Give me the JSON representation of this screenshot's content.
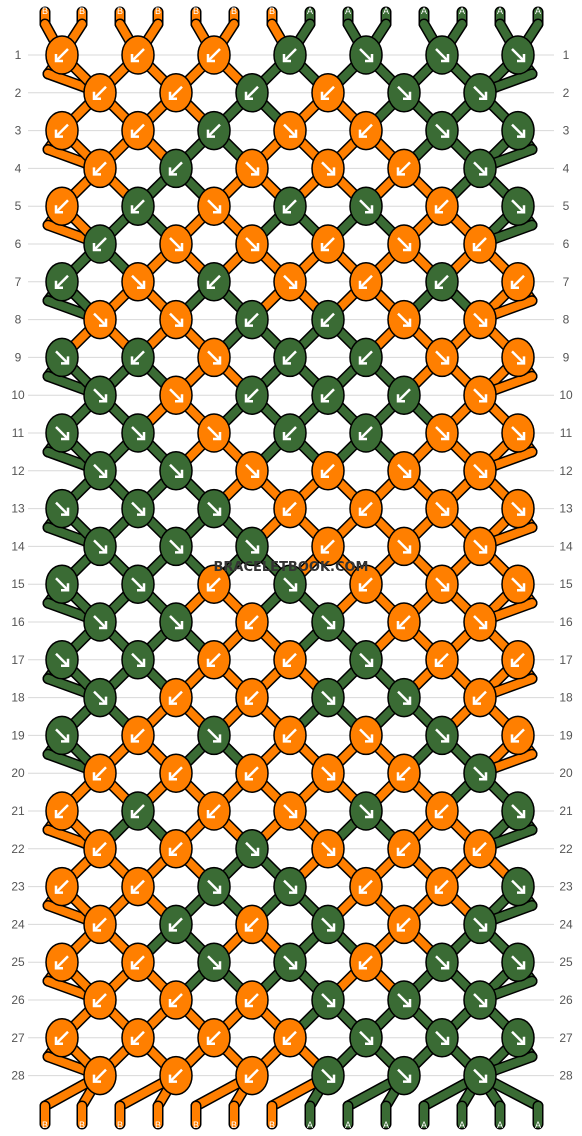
{
  "watermark": "BRACELETBOOK.COM",
  "colors": {
    "B": "#ff7f00",
    "A": "#3a6b34",
    "outline": "#000000",
    "arrow": "#ffffff",
    "grid": "#d8d8d8"
  },
  "strands_top": [
    "B",
    "B",
    "B",
    "B",
    "B",
    "B",
    "B",
    "A",
    "A",
    "A",
    "A",
    "A",
    "A",
    "A"
  ],
  "strands_bottom": [
    "B",
    "B",
    "B",
    "B",
    "B",
    "B",
    "B",
    "A",
    "A",
    "A",
    "A",
    "A",
    "A",
    "A"
  ],
  "chart_data": {
    "type": "table",
    "rows": [
      {
        "n": "1",
        "knots": [
          [
            "B",
            "bl"
          ],
          [
            "B",
            "bl"
          ],
          [
            "B",
            "bl"
          ],
          [
            "A",
            "bl"
          ],
          [
            "A",
            "br"
          ],
          [
            "A",
            "br"
          ],
          [
            "A",
            "br"
          ]
        ]
      },
      {
        "n": "2",
        "knots": [
          [
            "B",
            "bl"
          ],
          [
            "B",
            "bl"
          ],
          [
            "A",
            "bl"
          ],
          [
            "B",
            "bl"
          ],
          [
            "A",
            "br"
          ],
          [
            "A",
            "br"
          ]
        ]
      },
      {
        "n": "3",
        "knots": [
          [
            "B",
            "bl"
          ],
          [
            "B",
            "bl"
          ],
          [
            "A",
            "bl"
          ],
          [
            "B",
            "br"
          ],
          [
            "B",
            "bl"
          ],
          [
            "A",
            "br"
          ],
          [
            "A",
            "br"
          ]
        ]
      },
      {
        "n": "4",
        "knots": [
          [
            "B",
            "bl"
          ],
          [
            "A",
            "bl"
          ],
          [
            "B",
            "br"
          ],
          [
            "B",
            "br"
          ],
          [
            "B",
            "bl"
          ],
          [
            "A",
            "br"
          ]
        ]
      },
      {
        "n": "5",
        "knots": [
          [
            "B",
            "bl"
          ],
          [
            "A",
            "bl"
          ],
          [
            "B",
            "br"
          ],
          [
            "A",
            "bl"
          ],
          [
            "A",
            "br"
          ],
          [
            "B",
            "bl"
          ],
          [
            "A",
            "br"
          ]
        ]
      },
      {
        "n": "6",
        "knots": [
          [
            "A",
            "bl"
          ],
          [
            "B",
            "br"
          ],
          [
            "B",
            "br"
          ],
          [
            "B",
            "bl"
          ],
          [
            "B",
            "br"
          ],
          [
            "B",
            "bl"
          ]
        ]
      },
      {
        "n": "7",
        "knots": [
          [
            "A",
            "bl"
          ],
          [
            "B",
            "br"
          ],
          [
            "A",
            "bl"
          ],
          [
            "B",
            "br"
          ],
          [
            "B",
            "bl"
          ],
          [
            "A",
            "bl"
          ],
          [
            "B",
            "bl"
          ]
        ]
      },
      {
        "n": "8",
        "knots": [
          [
            "B",
            "br"
          ],
          [
            "B",
            "br"
          ],
          [
            "A",
            "bl"
          ],
          [
            "A",
            "bl"
          ],
          [
            "B",
            "br"
          ],
          [
            "B",
            "br"
          ]
        ]
      },
      {
        "n": "9",
        "knots": [
          [
            "A",
            "br"
          ],
          [
            "A",
            "bl"
          ],
          [
            "B",
            "br"
          ],
          [
            "A",
            "bl"
          ],
          [
            "A",
            "bl"
          ],
          [
            "B",
            "br"
          ],
          [
            "B",
            "br"
          ]
        ]
      },
      {
        "n": "10",
        "knots": [
          [
            "A",
            "br"
          ],
          [
            "B",
            "br"
          ],
          [
            "A",
            "bl"
          ],
          [
            "A",
            "bl"
          ],
          [
            "A",
            "bl"
          ],
          [
            "B",
            "br"
          ]
        ]
      },
      {
        "n": "11",
        "knots": [
          [
            "A",
            "br"
          ],
          [
            "A",
            "br"
          ],
          [
            "B",
            "br"
          ],
          [
            "A",
            "bl"
          ],
          [
            "A",
            "bl"
          ],
          [
            "B",
            "br"
          ],
          [
            "B",
            "br"
          ]
        ]
      },
      {
        "n": "12",
        "knots": [
          [
            "A",
            "br"
          ],
          [
            "A",
            "br"
          ],
          [
            "B",
            "br"
          ],
          [
            "B",
            "bl"
          ],
          [
            "B",
            "br"
          ],
          [
            "B",
            "br"
          ]
        ]
      },
      {
        "n": "13",
        "knots": [
          [
            "A",
            "br"
          ],
          [
            "A",
            "br"
          ],
          [
            "A",
            "br"
          ],
          [
            "B",
            "bl"
          ],
          [
            "B",
            "bl"
          ],
          [
            "B",
            "br"
          ],
          [
            "B",
            "br"
          ]
        ]
      },
      {
        "n": "14",
        "knots": [
          [
            "A",
            "br"
          ],
          [
            "A",
            "br"
          ],
          [
            "A",
            "br"
          ],
          [
            "B",
            "bl"
          ],
          [
            "B",
            "br"
          ],
          [
            "B",
            "br"
          ]
        ]
      },
      {
        "n": "15",
        "knots": [
          [
            "A",
            "br"
          ],
          [
            "A",
            "br"
          ],
          [
            "B",
            "bl"
          ],
          [
            "A",
            "br"
          ],
          [
            "B",
            "bl"
          ],
          [
            "B",
            "br"
          ],
          [
            "B",
            "br"
          ]
        ]
      },
      {
        "n": "16",
        "knots": [
          [
            "A",
            "br"
          ],
          [
            "A",
            "br"
          ],
          [
            "B",
            "bl"
          ],
          [
            "A",
            "br"
          ],
          [
            "B",
            "bl"
          ],
          [
            "B",
            "br"
          ]
        ]
      },
      {
        "n": "17",
        "knots": [
          [
            "A",
            "br"
          ],
          [
            "A",
            "br"
          ],
          [
            "B",
            "bl"
          ],
          [
            "B",
            "bl"
          ],
          [
            "A",
            "br"
          ],
          [
            "B",
            "bl"
          ],
          [
            "B",
            "bl"
          ]
        ]
      },
      {
        "n": "18",
        "knots": [
          [
            "A",
            "br"
          ],
          [
            "B",
            "bl"
          ],
          [
            "B",
            "bl"
          ],
          [
            "A",
            "br"
          ],
          [
            "A",
            "br"
          ],
          [
            "B",
            "bl"
          ]
        ]
      },
      {
        "n": "19",
        "knots": [
          [
            "A",
            "br"
          ],
          [
            "B",
            "bl"
          ],
          [
            "A",
            "br"
          ],
          [
            "B",
            "bl"
          ],
          [
            "B",
            "br"
          ],
          [
            "A",
            "br"
          ],
          [
            "B",
            "bl"
          ]
        ]
      },
      {
        "n": "20",
        "knots": [
          [
            "B",
            "bl"
          ],
          [
            "B",
            "bl"
          ],
          [
            "B",
            "bl"
          ],
          [
            "B",
            "br"
          ],
          [
            "B",
            "bl"
          ],
          [
            "A",
            "br"
          ]
        ]
      },
      {
        "n": "21",
        "knots": [
          [
            "B",
            "bl"
          ],
          [
            "A",
            "bl"
          ],
          [
            "B",
            "bl"
          ],
          [
            "B",
            "br"
          ],
          [
            "A",
            "br"
          ],
          [
            "B",
            "bl"
          ],
          [
            "A",
            "br"
          ]
        ]
      },
      {
        "n": "22",
        "knots": [
          [
            "B",
            "bl"
          ],
          [
            "B",
            "bl"
          ],
          [
            "A",
            "br"
          ],
          [
            "B",
            "br"
          ],
          [
            "B",
            "bl"
          ],
          [
            "B",
            "bl"
          ]
        ]
      },
      {
        "n": "23",
        "knots": [
          [
            "B",
            "bl"
          ],
          [
            "B",
            "bl"
          ],
          [
            "A",
            "br"
          ],
          [
            "A",
            "br"
          ],
          [
            "B",
            "bl"
          ],
          [
            "B",
            "bl"
          ],
          [
            "A",
            "br"
          ]
        ]
      },
      {
        "n": "24",
        "knots": [
          [
            "B",
            "bl"
          ],
          [
            "A",
            "bl"
          ],
          [
            "B",
            "bl"
          ],
          [
            "A",
            "br"
          ],
          [
            "B",
            "bl"
          ],
          [
            "A",
            "br"
          ]
        ]
      },
      {
        "n": "25",
        "knots": [
          [
            "B",
            "bl"
          ],
          [
            "B",
            "bl"
          ],
          [
            "A",
            "br"
          ],
          [
            "A",
            "br"
          ],
          [
            "B",
            "bl"
          ],
          [
            "A",
            "br"
          ],
          [
            "A",
            "br"
          ]
        ]
      },
      {
        "n": "26",
        "knots": [
          [
            "B",
            "bl"
          ],
          [
            "B",
            "bl"
          ],
          [
            "B",
            "bl"
          ],
          [
            "A",
            "br"
          ],
          [
            "A",
            "br"
          ],
          [
            "A",
            "br"
          ]
        ]
      },
      {
        "n": "27",
        "knots": [
          [
            "B",
            "bl"
          ],
          [
            "B",
            "bl"
          ],
          [
            "B",
            "bl"
          ],
          [
            "B",
            "bl"
          ],
          [
            "A",
            "br"
          ],
          [
            "A",
            "br"
          ],
          [
            "A",
            "br"
          ]
        ]
      },
      {
        "n": "28",
        "knots": [
          [
            "B",
            "bl"
          ],
          [
            "B",
            "bl"
          ],
          [
            "B",
            "bl"
          ],
          [
            "A",
            "br"
          ],
          [
            "A",
            "br"
          ],
          [
            "A",
            "br"
          ]
        ]
      }
    ]
  }
}
